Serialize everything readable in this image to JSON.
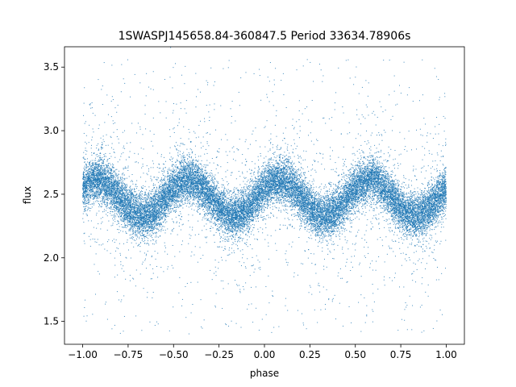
{
  "chart_data": {
    "type": "scatter",
    "title": "1SWASPJ145658.84-360847.5 Period 33634.78906s",
    "xlabel": "phase",
    "ylabel": "flux",
    "xlim": [
      -1.1,
      1.1
    ],
    "ylim": [
      1.32,
      3.66
    ],
    "xticks": [
      -1.0,
      -0.75,
      -0.5,
      -0.25,
      0.0,
      0.25,
      0.5,
      0.75,
      1.0
    ],
    "xtick_labels": [
      "−1.00",
      "−0.75",
      "−0.50",
      "−0.25",
      "0.00",
      "0.25",
      "0.50",
      "0.75",
      "1.00"
    ],
    "yticks": [
      1.5,
      2.0,
      2.5,
      3.0,
      3.5
    ],
    "ytick_labels": [
      "1.5",
      "2.0",
      "2.5",
      "3.0",
      "3.5"
    ],
    "grid": false,
    "legend": "none",
    "point_color": "#1f77b4",
    "series": [
      {
        "x_range": [
          -1.0,
          1.0
        ],
        "mean_flux": 2.47,
        "amplitude": 0.14,
        "cycles_per_phase": 2,
        "peak_phase": 0.08,
        "point_count": 24000,
        "sample_curve": {
          "x": [
            -1.0,
            -0.85,
            -0.67,
            -0.42,
            -0.17,
            0.08,
            0.33,
            0.58,
            0.83,
            1.0
          ],
          "y": [
            2.58,
            2.6,
            2.34,
            2.62,
            2.34,
            2.62,
            2.34,
            2.62,
            2.34,
            2.52
          ]
        }
      }
    ]
  }
}
